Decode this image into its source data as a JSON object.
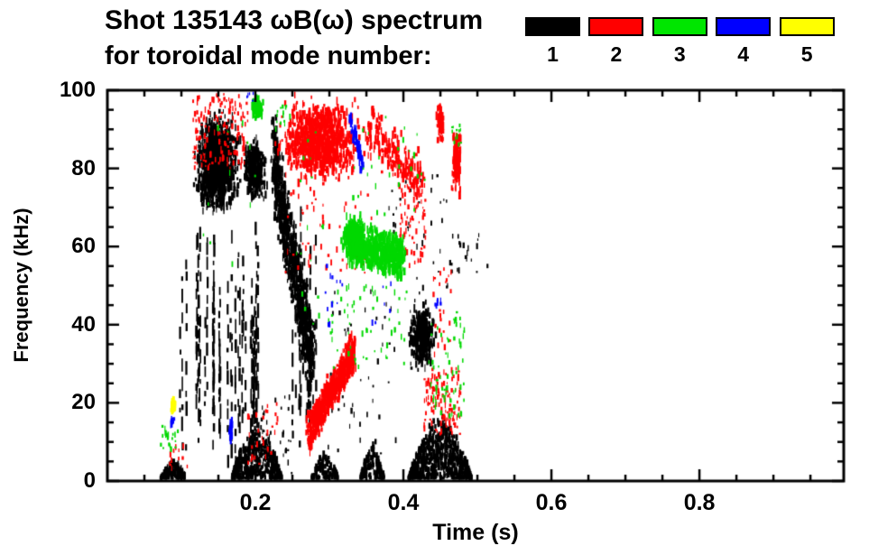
{
  "title": {
    "line1": "Shot 135143 ωB(ω) spectrum",
    "line2": "for toroidal mode number:"
  },
  "legend": {
    "items": [
      {
        "label": "1",
        "color": "#000000"
      },
      {
        "label": "2",
        "color": "#ff0000"
      },
      {
        "label": "3",
        "color": "#00e600"
      },
      {
        "label": "4",
        "color": "#0000ff"
      },
      {
        "label": "5",
        "color": "#ffff00"
      }
    ]
  },
  "chart_data": {
    "type": "scatter",
    "title": "Shot 135143 ωB(ω) spectrum for toroidal mode number: 1 2 3 4 5",
    "xlabel": "Time (s)",
    "ylabel": "Frequency (kHz)",
    "xlim": [
      0,
      0.995
    ],
    "ylim": [
      0,
      100
    ],
    "x_major_ticks": [
      0.2,
      0.4,
      0.6,
      0.8
    ],
    "x_tick_labels": [
      "0.2",
      "0.4",
      "0.6",
      "0.8"
    ],
    "x_minor_step": 0.05,
    "y_major_ticks": [
      0,
      20,
      40,
      60,
      80,
      100
    ],
    "y_tick_labels": [
      "0",
      "20",
      "40",
      "60",
      "80",
      "100"
    ],
    "y_minor_step": 5,
    "grid": false,
    "legend_position": "top-right",
    "series": [
      {
        "name": "toroidal mode n=1",
        "color": "#000000",
        "clusters": [
          {
            "pattern": "blob",
            "t": [
              0.114,
              0.182
            ],
            "f": [
              66,
              96
            ],
            "n": 1200
          },
          {
            "pattern": "streaks",
            "t": [
              0.092,
              0.205
            ],
            "f": [
              2,
              66
            ],
            "n": 40
          },
          {
            "pattern": "blob",
            "t": [
              0.182,
              0.217
            ],
            "f": [
              70,
              89
            ],
            "n": 400
          },
          {
            "pattern": "diag",
            "from": [
              0.224,
              82
            ],
            "to": [
              0.278,
              30
            ],
            "spread": 13,
            "n": 900
          },
          {
            "pattern": "streaks",
            "t": [
              0.25,
              0.288
            ],
            "f": [
              4,
              74
            ],
            "n": 10
          },
          {
            "pattern": "mound",
            "t": [
              0.168,
              0.236
            ],
            "f": [
              0.5,
              17
            ],
            "n": 450
          },
          {
            "pattern": "mound",
            "t": [
              0.072,
              0.106
            ],
            "f": [
              0.5,
              6.5
            ],
            "n": 140
          },
          {
            "pattern": "mound",
            "t": [
              0.276,
              0.312
            ],
            "f": [
              0.5,
              9
            ],
            "n": 120
          },
          {
            "pattern": "mound",
            "t": [
              0.342,
              0.374
            ],
            "f": [
              0.5,
              11
            ],
            "n": 130
          },
          {
            "pattern": "blob",
            "t": [
              0.404,
              0.446
            ],
            "f": [
              27,
              47
            ],
            "n": 420
          },
          {
            "pattern": "mound",
            "t": [
              0.407,
              0.492
            ],
            "f": [
              0.5,
              19
            ],
            "n": 700
          },
          {
            "pattern": "specks",
            "t": [
              0.295,
              0.39
            ],
            "f": [
              4,
              50
            ],
            "n": 45
          },
          {
            "pattern": "specks",
            "t": [
              0.38,
              0.46
            ],
            "f": [
              48,
              82
            ],
            "n": 40
          },
          {
            "pattern": "specks",
            "t": [
              0.463,
              0.515
            ],
            "f": [
              53,
              63
            ],
            "n": 20
          },
          {
            "pattern": "specks",
            "t": [
              0.205,
              0.25
            ],
            "f": [
              2,
              22
            ],
            "n": 28
          }
        ]
      },
      {
        "name": "toroidal mode n=2",
        "color": "#ff0000",
        "clusters": [
          {
            "pattern": "specks",
            "t": [
              0.114,
              0.19
            ],
            "f": [
              80,
              99
            ],
            "n": 170
          },
          {
            "pattern": "blob",
            "t": [
              0.224,
              0.35
            ],
            "f": [
              74,
              100
            ],
            "n": 1000
          },
          {
            "pattern": "diag",
            "from": [
              0.35,
              90
            ],
            "to": [
              0.425,
              76
            ],
            "spread": 8,
            "n": 200
          },
          {
            "pattern": "specks",
            "t": [
              0.393,
              0.43
            ],
            "f": [
              55,
              80
            ],
            "n": 80
          },
          {
            "pattern": "blob",
            "t": [
              0.444,
              0.456
            ],
            "f": [
              85,
              98
            ],
            "n": 60
          },
          {
            "pattern": "blob",
            "t": [
              0.464,
              0.479
            ],
            "f": [
              72,
              92
            ],
            "n": 140
          },
          {
            "pattern": "diag",
            "from": [
              0.271,
              12
            ],
            "to": [
              0.333,
              33
            ],
            "spread": 5.5,
            "n": 650
          },
          {
            "pattern": "specks",
            "t": [
              0.428,
              0.477
            ],
            "f": [
              12,
              29
            ],
            "n": 130
          },
          {
            "pattern": "specks",
            "t": [
              0.19,
              0.23
            ],
            "f": [
              4,
              20
            ],
            "n": 30
          },
          {
            "pattern": "specks",
            "t": [
              0.082,
              0.108
            ],
            "f": [
              3,
              9
            ],
            "n": 12
          },
          {
            "pattern": "specks",
            "t": [
              0.24,
              0.36
            ],
            "f": [
              52,
              74
            ],
            "n": 55
          },
          {
            "pattern": "specks",
            "t": [
              0.44,
              0.465
            ],
            "f": [
              30,
              55
            ],
            "n": 25
          }
        ]
      },
      {
        "name": "toroidal mode n=3",
        "color": "#00d800",
        "clusters": [
          {
            "pattern": "blob",
            "t": [
              0.194,
              0.213
            ],
            "f": [
              92,
              98.5
            ],
            "n": 120
          },
          {
            "pattern": "diag",
            "from": [
              0.328,
              61
            ],
            "to": [
              0.4,
              57
            ],
            "spread": 6,
            "n": 750
          },
          {
            "pattern": "blob",
            "t": [
              0.313,
              0.35
            ],
            "f": [
              55,
              69
            ],
            "n": 250
          },
          {
            "pattern": "specks",
            "t": [
              0.3,
              0.405
            ],
            "f": [
              28,
              50
            ],
            "n": 60
          },
          {
            "pattern": "specks",
            "t": [
              0.433,
              0.483
            ],
            "f": [
              16,
              44
            ],
            "n": 65
          },
          {
            "pattern": "specks",
            "t": [
              0.466,
              0.478
            ],
            "f": [
              86,
              92
            ],
            "n": 12
          },
          {
            "pattern": "specks",
            "t": [
              0.072,
              0.098
            ],
            "f": [
              8,
              14
            ],
            "n": 20
          },
          {
            "pattern": "specks",
            "t": [
              0.222,
              0.25
            ],
            "f": [
              90,
              97
            ],
            "n": 14
          },
          {
            "pattern": "specks",
            "t": [
              0.33,
              0.43
            ],
            "f": [
              68,
              96
            ],
            "n": 28
          },
          {
            "pattern": "specks",
            "t": [
              0.12,
              0.21
            ],
            "f": [
              55,
              92
            ],
            "n": 12
          },
          {
            "pattern": "specks",
            "t": [
              0.25,
              0.3
            ],
            "f": [
              35,
              90
            ],
            "n": 18
          }
        ]
      },
      {
        "name": "toroidal mode n=4",
        "color": "#0000ff",
        "clusters": [
          {
            "pattern": "diag",
            "from": [
              0.328,
              94
            ],
            "to": [
              0.346,
              80
            ],
            "spread": 1.5,
            "n": 50
          },
          {
            "pattern": "blob",
            "t": [
              0.0835,
              0.0915
            ],
            "f": [
              14,
              17
            ],
            "n": 10
          },
          {
            "pattern": "blob",
            "t": [
              0.1635,
              0.17
            ],
            "f": [
              8,
              17.5
            ],
            "n": 25
          },
          {
            "pattern": "specks",
            "t": [
              0.442,
              0.452
            ],
            "f": [
              43,
              47
            ],
            "n": 8
          },
          {
            "pattern": "specks",
            "t": [
              0.294,
              0.318
            ],
            "f": [
              40,
              57
            ],
            "n": 12
          },
          {
            "pattern": "specks",
            "t": [
              0.188,
              0.197
            ],
            "f": [
              96,
              100
            ],
            "n": 5
          },
          {
            "pattern": "specks",
            "t": [
              0.35,
              0.4
            ],
            "f": [
              40,
              55
            ],
            "n": 6
          }
        ]
      },
      {
        "name": "toroidal mode n=5",
        "color": "#ffff00",
        "clusters": [
          {
            "pattern": "blob",
            "t": [
              0.085,
              0.0925
            ],
            "f": [
              17,
              21.5
            ],
            "n": 30
          }
        ]
      }
    ]
  }
}
